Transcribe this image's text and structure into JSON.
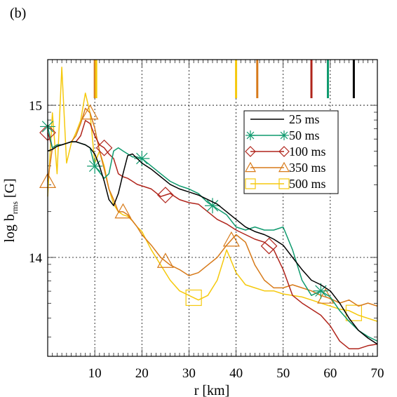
{
  "panel_label": "(b)",
  "chart_data": {
    "type": "line",
    "xlabel": "r [km]",
    "ylabel_main": "log b",
    "ylabel_sub": "rms",
    "ylabel_unit": " [G]",
    "xlim": [
      0,
      70
    ],
    "ylim": [
      13.35,
      15.3
    ],
    "x_ticks": [
      10,
      20,
      30,
      40,
      50,
      60,
      70
    ],
    "y_ticks": [
      14,
      15
    ],
    "grid": true,
    "legend_position": "top-right",
    "series": [
      {
        "name": "25 ms",
        "color": "#000000",
        "marker": "none",
        "x": [
          0,
          1,
          2,
          3,
          4,
          5,
          6,
          7,
          8,
          9,
          10,
          11,
          12,
          13,
          14,
          15,
          16,
          17,
          18,
          19,
          20,
          22,
          24,
          26,
          28,
          30,
          32,
          34,
          36,
          38,
          40,
          42,
          44,
          46,
          48,
          50,
          52,
          54,
          56,
          58,
          60,
          62,
          64,
          66,
          68,
          70
        ],
        "y": [
          14.7,
          14.71,
          14.73,
          14.74,
          14.75,
          14.76,
          14.76,
          14.75,
          14.74,
          14.72,
          14.68,
          14.6,
          14.5,
          14.38,
          14.34,
          14.42,
          14.55,
          14.67,
          14.68,
          14.65,
          14.62,
          14.58,
          14.53,
          14.48,
          14.45,
          14.43,
          14.41,
          14.38,
          14.35,
          14.3,
          14.25,
          14.2,
          14.17,
          14.15,
          14.12,
          14.08,
          14.0,
          13.92,
          13.85,
          13.82,
          13.78,
          13.7,
          13.6,
          13.52,
          13.47,
          13.43
        ]
      },
      {
        "name": "50 ms",
        "color": "#0f9a6e",
        "marker": "asterisk",
        "marker_x": [
          0,
          10,
          20,
          35,
          58
        ],
        "x": [
          0,
          1,
          2,
          3,
          4,
          5,
          6,
          7,
          8,
          9,
          10,
          11,
          12,
          13,
          14,
          15,
          16,
          17,
          18,
          19,
          20,
          22,
          24,
          26,
          28,
          30,
          32,
          34,
          36,
          38,
          40,
          42,
          44,
          46,
          48,
          50,
          52,
          54,
          56,
          58,
          60,
          62,
          64,
          66,
          68,
          70
        ],
        "y": [
          14.86,
          14.72,
          14.74,
          14.74,
          14.75,
          14.76,
          14.76,
          14.75,
          14.74,
          14.72,
          14.6,
          14.56,
          14.52,
          14.55,
          14.7,
          14.72,
          14.7,
          14.68,
          14.66,
          14.66,
          14.65,
          14.6,
          14.55,
          14.5,
          14.47,
          14.45,
          14.42,
          14.36,
          14.32,
          14.28,
          14.2,
          14.18,
          14.2,
          14.18,
          14.18,
          14.2,
          14.05,
          13.85,
          13.75,
          13.78,
          13.74,
          13.65,
          13.58,
          13.52,
          13.48,
          13.45
        ]
      },
      {
        "name": "100 ms",
        "color": "#b0241b",
        "marker": "diamond",
        "marker_x": [
          0,
          12,
          25,
          47
        ],
        "x": [
          0,
          1,
          2,
          3,
          4,
          5,
          6,
          7,
          8,
          9,
          10,
          11,
          12,
          13,
          14,
          15,
          16,
          17,
          18,
          19,
          20,
          22,
          24,
          26,
          28,
          30,
          32,
          34,
          36,
          38,
          40,
          42,
          44,
          46,
          48,
          50,
          52,
          54,
          56,
          58,
          60,
          62,
          64,
          66,
          68,
          70
        ],
        "y": [
          14.82,
          14.72,
          14.74,
          14.74,
          14.75,
          14.76,
          14.76,
          14.8,
          14.9,
          14.88,
          14.8,
          14.74,
          14.72,
          14.68,
          14.65,
          14.55,
          14.53,
          14.52,
          14.5,
          14.48,
          14.47,
          14.45,
          14.4,
          14.42,
          14.38,
          14.36,
          14.35,
          14.3,
          14.25,
          14.22,
          14.18,
          14.15,
          14.12,
          14.1,
          14.05,
          13.92,
          13.75,
          13.7,
          13.66,
          13.62,
          13.55,
          13.45,
          13.4,
          13.4,
          13.42,
          13.43
        ]
      },
      {
        "name": "350 ms",
        "color": "#d77a1a",
        "marker": "triangle",
        "marker_x": [
          0,
          9,
          16,
          25,
          39,
          59
        ],
        "x": [
          0,
          1,
          2,
          3,
          4,
          5,
          6,
          7,
          8,
          9,
          10,
          11,
          12,
          13,
          14,
          15,
          16,
          17,
          18,
          19,
          20,
          22,
          24,
          26,
          28,
          30,
          32,
          34,
          36,
          38,
          40,
          42,
          44,
          46,
          48,
          50,
          52,
          54,
          56,
          58,
          60,
          62,
          64,
          66,
          68,
          70
        ],
        "y": [
          14.5,
          14.72,
          14.74,
          14.74,
          14.75,
          14.76,
          14.8,
          14.88,
          14.98,
          14.95,
          14.85,
          14.7,
          14.58,
          14.45,
          14.38,
          14.3,
          14.3,
          14.28,
          14.24,
          14.2,
          14.15,
          14.08,
          14.0,
          13.95,
          13.92,
          13.88,
          13.9,
          13.95,
          14.0,
          14.08,
          14.15,
          14.1,
          13.95,
          13.85,
          13.8,
          13.8,
          13.82,
          13.8,
          13.78,
          13.75,
          13.73,
          13.7,
          13.72,
          13.68,
          13.7,
          13.68
        ]
      },
      {
        "name": "500 ms",
        "color": "#f5c90d",
        "marker": "square",
        "marker_x": [
          31,
          65
        ],
        "x": [
          0,
          1,
          2,
          3,
          4,
          5,
          6,
          7,
          8,
          9,
          10,
          11,
          12,
          13,
          14,
          15,
          16,
          17,
          18,
          19,
          20,
          22,
          24,
          26,
          28,
          30,
          32,
          34,
          36,
          38,
          40,
          42,
          44,
          46,
          48,
          50,
          52,
          54,
          56,
          58,
          60,
          62,
          64,
          66,
          68,
          70
        ],
        "y": [
          14.4,
          14.95,
          14.55,
          15.25,
          14.62,
          14.75,
          14.82,
          14.9,
          15.08,
          14.95,
          14.62,
          14.7,
          14.6,
          14.45,
          14.35,
          14.3,
          14.28,
          14.27,
          14.24,
          14.2,
          14.17,
          14.05,
          13.95,
          13.85,
          13.78,
          13.75,
          13.72,
          13.75,
          13.85,
          14.05,
          13.9,
          13.82,
          13.8,
          13.78,
          13.78,
          13.76,
          13.75,
          13.74,
          13.72,
          13.7,
          13.68,
          13.66,
          13.65,
          13.62,
          13.6,
          13.58
        ]
      }
    ],
    "top_markers": [
      {
        "x": 10,
        "color": "#d77a1a"
      },
      {
        "x": 10.3,
        "color": "#f5c90d"
      },
      {
        "x": 40,
        "color": "#f5c90d"
      },
      {
        "x": 44.5,
        "color": "#d77a1a"
      },
      {
        "x": 56,
        "color": "#b0241b"
      },
      {
        "x": 59.5,
        "color": "#0f9a6e"
      },
      {
        "x": 65,
        "color": "#000000"
      }
    ]
  }
}
